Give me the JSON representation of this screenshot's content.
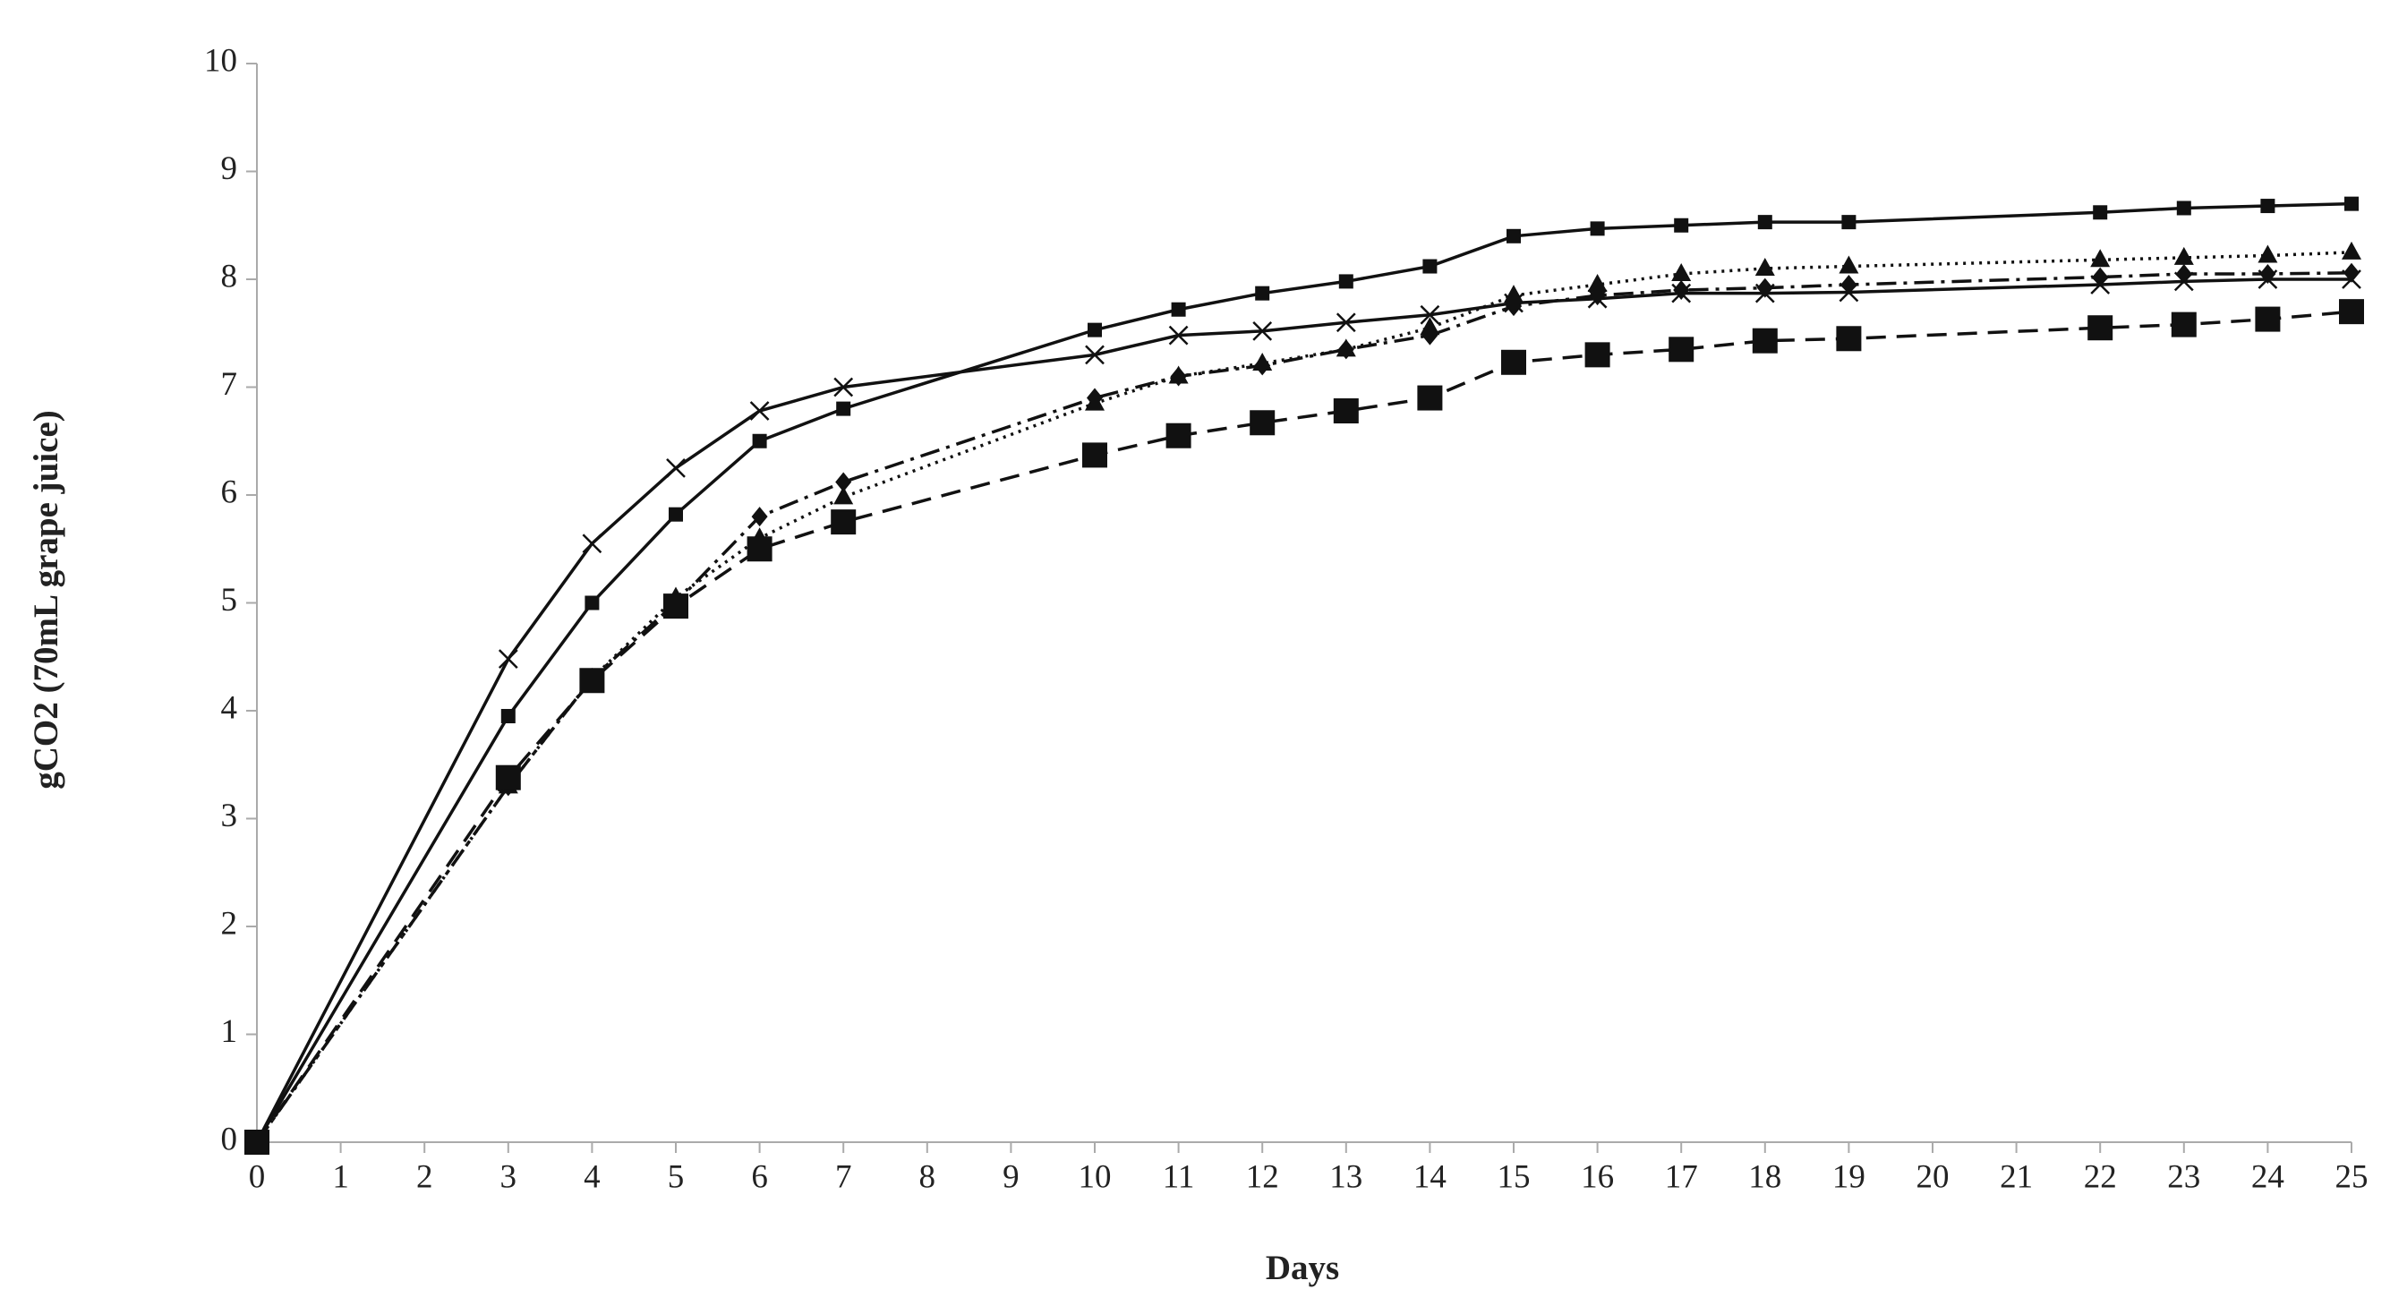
{
  "chart_data": {
    "type": "line",
    "xlabel": "Days",
    "ylabel": "gCO2  (70mL grape juice)",
    "x": [
      0,
      3,
      4,
      5,
      6,
      7,
      10,
      11,
      12,
      13,
      14,
      15,
      16,
      17,
      18,
      19,
      22,
      23,
      24,
      25
    ],
    "xlim": [
      0,
      25
    ],
    "xticks": [
      0,
      1,
      2,
      3,
      4,
      5,
      6,
      7,
      8,
      9,
      10,
      11,
      12,
      13,
      14,
      15,
      16,
      17,
      18,
      19,
      20,
      21,
      22,
      23,
      24,
      25
    ],
    "ylim": [
      0,
      10
    ],
    "yticks": [
      0,
      1,
      2,
      3,
      4,
      5,
      6,
      7,
      8,
      9,
      10
    ],
    "grid": false,
    "series": [
      {
        "color": "#111111",
        "dash": "solid",
        "marker": "square-small",
        "values": [
          0,
          3.95,
          5.0,
          5.82,
          6.5,
          6.8,
          7.53,
          7.72,
          7.87,
          7.98,
          8.12,
          8.4,
          8.47,
          8.5,
          8.53,
          8.53,
          8.62,
          8.66,
          8.68,
          8.7
        ]
      },
      {
        "color": "#111111",
        "dash": "solid",
        "marker": "cross",
        "values": [
          0,
          4.48,
          5.55,
          6.25,
          6.78,
          7.0,
          7.3,
          7.48,
          7.52,
          7.6,
          7.67,
          7.78,
          7.82,
          7.87,
          7.87,
          7.88,
          7.95,
          7.98,
          8.0,
          8.0
        ]
      },
      {
        "color": "#111111",
        "dash": "dotted",
        "marker": "triangle",
        "values": [
          0,
          3.3,
          4.3,
          5.05,
          5.6,
          5.98,
          6.85,
          7.1,
          7.22,
          7.35,
          7.55,
          7.85,
          7.95,
          8.05,
          8.1,
          8.12,
          8.18,
          8.2,
          8.22,
          8.25
        ]
      },
      {
        "color": "#111111",
        "dash": "dashdot",
        "marker": "diamond",
        "values": [
          0,
          3.3,
          4.3,
          5.0,
          5.8,
          6.12,
          6.9,
          7.1,
          7.2,
          7.35,
          7.48,
          7.75,
          7.85,
          7.9,
          7.92,
          7.95,
          8.02,
          8.05,
          8.05,
          8.06
        ]
      },
      {
        "color": "#111111",
        "dash": "dashed",
        "marker": "square-large",
        "values": [
          0,
          3.38,
          4.28,
          4.97,
          5.5,
          5.75,
          6.37,
          6.55,
          6.67,
          6.78,
          6.9,
          7.23,
          7.3,
          7.35,
          7.43,
          7.45,
          7.55,
          7.58,
          7.63,
          7.7
        ]
      }
    ]
  }
}
